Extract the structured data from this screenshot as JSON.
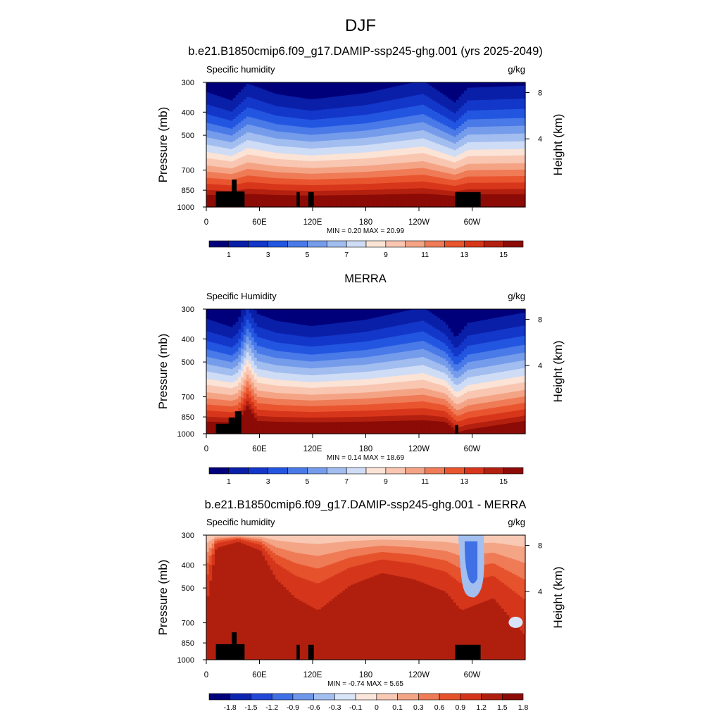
{
  "figure_title": "DJF",
  "chart_data": [
    {
      "type": "contour",
      "title": "b.e21.B1850cmip6.f09_g17.DAMIP-ssp245-ghg.001 (yrs 2025-2049)",
      "left_label": "Specific humidity",
      "right_label": "g/kg",
      "ylabel": "Pressure (mb)",
      "ylabel_right": "Height (km)",
      "x_ticks": [
        "0",
        "60E",
        "120E",
        "180",
        "120W",
        "60W"
      ],
      "y_ticks": [
        "300",
        "400",
        "500",
        "700",
        "850",
        "1000"
      ],
      "y_ticks_right": [
        "8",
        "4"
      ],
      "stats": "MIN =   0.20  MAX =  20.99",
      "colorbar_labels": [
        "1",
        "3",
        "5",
        "7",
        "9",
        "11",
        "13",
        "15"
      ],
      "levels": [
        0,
        1,
        2,
        3,
        4,
        5,
        6,
        7,
        8,
        9,
        10,
        11,
        12,
        13,
        14,
        15,
        16
      ]
    },
    {
      "type": "contour",
      "title": "MERRA",
      "left_label": "Specific Humidity",
      "right_label": "g/kg",
      "ylabel": "Pressure (mb)",
      "ylabel_right": "Height (km)",
      "x_ticks": [
        "0",
        "60E",
        "120E",
        "180",
        "120W",
        "60W"
      ],
      "y_ticks": [
        "300",
        "400",
        "500",
        "700",
        "850",
        "1000"
      ],
      "y_ticks_right": [
        "8",
        "4"
      ],
      "stats": "MIN =   0.14  MAX =  18.69",
      "colorbar_labels": [
        "1",
        "3",
        "5",
        "7",
        "9",
        "11",
        "13",
        "15"
      ],
      "levels": [
        0,
        1,
        2,
        3,
        4,
        5,
        6,
        7,
        8,
        9,
        10,
        11,
        12,
        13,
        14,
        15,
        16
      ]
    },
    {
      "type": "contour",
      "title": "b.e21.B1850cmip6.f09_g17.DAMIP-ssp245-ghg.001 - MERRA",
      "left_label": "Specific humidity",
      "right_label": "g/kg",
      "ylabel": "Pressure (mb)",
      "ylabel_right": "Height (km)",
      "x_ticks": [
        "0",
        "60E",
        "120E",
        "180",
        "120W",
        "60W"
      ],
      "y_ticks": [
        "300",
        "400",
        "500",
        "700",
        "850",
        "1000"
      ],
      "y_ticks_right": [
        "8",
        "4"
      ],
      "stats": "MIN =  -0.74  MAX =   5.65",
      "colorbar_labels": [
        "-1.8",
        "-1.5",
        "-1.2",
        "-0.9",
        "-0.6",
        "-0.3",
        "-0.1",
        "0",
        "0.1",
        "0.3",
        "0.6",
        "0.9",
        "1.2",
        "1.5",
        "1.8"
      ],
      "levels": [
        -1.8,
        -1.5,
        -1.2,
        -0.9,
        -0.6,
        -0.3,
        -0.1,
        0,
        0.1,
        0.3,
        0.6,
        0.9,
        1.2,
        1.5,
        1.8
      ]
    }
  ],
  "colors": {
    "full": [
      "#00007a",
      "#0a1fa8",
      "#1337c9",
      "#2356e0",
      "#4a7ae8",
      "#759ceb",
      "#a2bdef",
      "#cfdcf5",
      "#fbe3d6",
      "#f8c6b1",
      "#f4a485",
      "#ef7b57",
      "#e9552f",
      "#d8361b",
      "#b3200f",
      "#8c0b06"
    ],
    "diff": [
      "#00007a",
      "#0d25b0",
      "#2148d6",
      "#3f70e6",
      "#6e97ea",
      "#a3bff0",
      "#d8e4f7",
      "#fbe6dc",
      "#f8c9b4",
      "#f4a586",
      "#ef7b57",
      "#e6522c",
      "#d5361b",
      "#b01f0e",
      "#8c0b06"
    ],
    "terrain": "#000000"
  }
}
